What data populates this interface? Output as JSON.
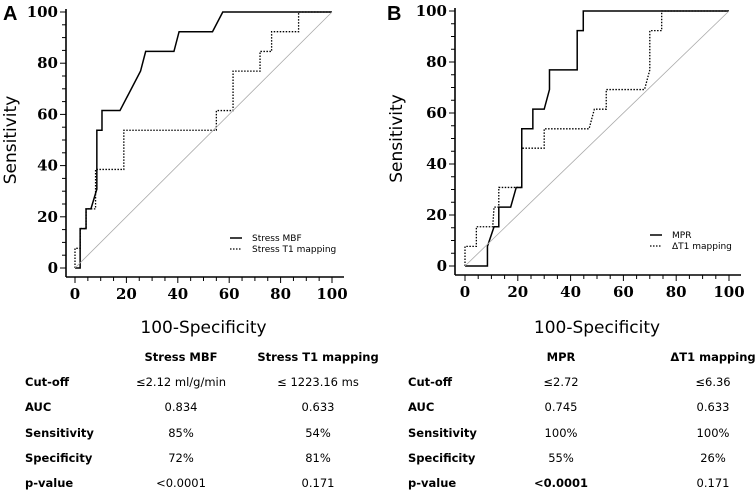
{
  "chart_data": [
    {
      "type": "line",
      "panel_label": "A",
      "xlabel": "100-Specificity",
      "ylabel": "Sensitivity",
      "xlim": [
        0,
        100
      ],
      "ylim": [
        0,
        100
      ],
      "xticks": [
        "0",
        "20",
        "40",
        "60",
        "80",
        "100"
      ],
      "yticks": [
        "0",
        "20",
        "40",
        "60",
        "80",
        "100"
      ],
      "legend_position": "bottom-right",
      "series": [
        {
          "name": "Stress MBF",
          "style": "solid",
          "x": [
            0,
            2,
            2,
            4.3,
            4.3,
            6.2,
            8.5,
            8.5,
            10.5,
            10.5,
            17.5,
            25.5,
            27.5,
            38.5,
            40.5,
            53.5,
            57.5,
            100
          ],
          "y": [
            0,
            0,
            15.4,
            15.4,
            23.1,
            23.1,
            30.8,
            53.8,
            53.8,
            61.5,
            61.5,
            76.9,
            84.6,
            84.6,
            92.3,
            92.3,
            100,
            100
          ]
        },
        {
          "name": "Stress T1 mapping",
          "style": "dotted",
          "x": [
            0,
            0,
            2,
            2,
            4.3,
            4.3,
            8,
            8,
            19,
            19,
            55,
            55,
            61.5,
            61.5,
            72,
            72,
            76.5,
            76.5,
            87,
            87,
            100
          ],
          "y": [
            0,
            7.7,
            7.7,
            15.4,
            15.4,
            23.1,
            23.1,
            38.5,
            38.5,
            53.8,
            53.8,
            61.5,
            61.5,
            76.9,
            76.9,
            84.6,
            84.6,
            92.3,
            92.3,
            100,
            100
          ]
        },
        {
          "name": "reference",
          "style": "diagonal",
          "x": [
            0,
            100
          ],
          "y": [
            0,
            100
          ]
        }
      ],
      "table": {
        "headers": [
          "",
          "Stress MBF",
          "Stress T1 mapping"
        ],
        "rows": [
          [
            "Cut-off",
            "≤2.12 ml/g/min",
            "≤ 1223.16 ms"
          ],
          [
            "AUC",
            "0.834",
            "0.633"
          ],
          [
            "Sensitivity",
            "85%",
            "54%"
          ],
          [
            "Specificity",
            "72%",
            "81%"
          ],
          [
            "p-value",
            "<0.0001",
            "0.171"
          ]
        ]
      }
    },
    {
      "type": "line",
      "panel_label": "B",
      "xlabel": "100-Specificity",
      "ylabel": "Sensitivity",
      "xlim": [
        0,
        100
      ],
      "ylim": [
        0,
        100
      ],
      "xticks": [
        "0",
        "20",
        "40",
        "60",
        "80",
        "100"
      ],
      "yticks": [
        "0",
        "20",
        "40",
        "60",
        "80",
        "100"
      ],
      "legend_position": "bottom-right",
      "series": [
        {
          "name": "MPR",
          "style": "solid",
          "x": [
            0,
            8.5,
            8.5,
            11,
            12.8,
            12.8,
            17.3,
            19.4,
            21.5,
            21.5,
            25.7,
            25.7,
            30,
            32,
            32,
            42.5,
            42.5,
            44.8,
            44.8,
            100
          ],
          "y": [
            0,
            0,
            7.7,
            15.4,
            15.4,
            23.1,
            23.1,
            30.8,
            30.8,
            53.8,
            53.8,
            61.5,
            61.5,
            69.2,
            76.9,
            76.9,
            92.3,
            92.3,
            100,
            100
          ]
        },
        {
          "name": "ΔT1 mapping",
          "style": "dotted",
          "x": [
            0,
            0,
            4.3,
            4.3,
            10.5,
            11,
            12.8,
            12.8,
            19,
            21.5,
            21.5,
            30,
            30,
            47,
            49,
            53.5,
            53.5,
            68,
            70,
            70,
            74.5,
            74.5,
            100
          ],
          "y": [
            0,
            7.7,
            7.7,
            15.4,
            15.4,
            23.1,
            23.1,
            30.8,
            30.8,
            30.8,
            46.2,
            46.2,
            53.8,
            53.8,
            61.5,
            61.5,
            69.2,
            69.2,
            76.9,
            92.3,
            92.3,
            100,
            100
          ]
        },
        {
          "name": "reference",
          "style": "diagonal",
          "x": [
            0,
            100
          ],
          "y": [
            0,
            100
          ]
        }
      ],
      "table": {
        "headers": [
          "",
          "MPR",
          "ΔT1 mapping"
        ],
        "rows": [
          [
            "Cut-off",
            "≤2.72",
            "≤6.36"
          ],
          [
            "AUC",
            "0.745",
            "0.633"
          ],
          [
            "Sensitivity",
            "100%",
            "100%"
          ],
          [
            "Specificity",
            "55%",
            "26%"
          ],
          [
            "p-value",
            "<0.0001",
            "0.171"
          ]
        ]
      }
    }
  ]
}
